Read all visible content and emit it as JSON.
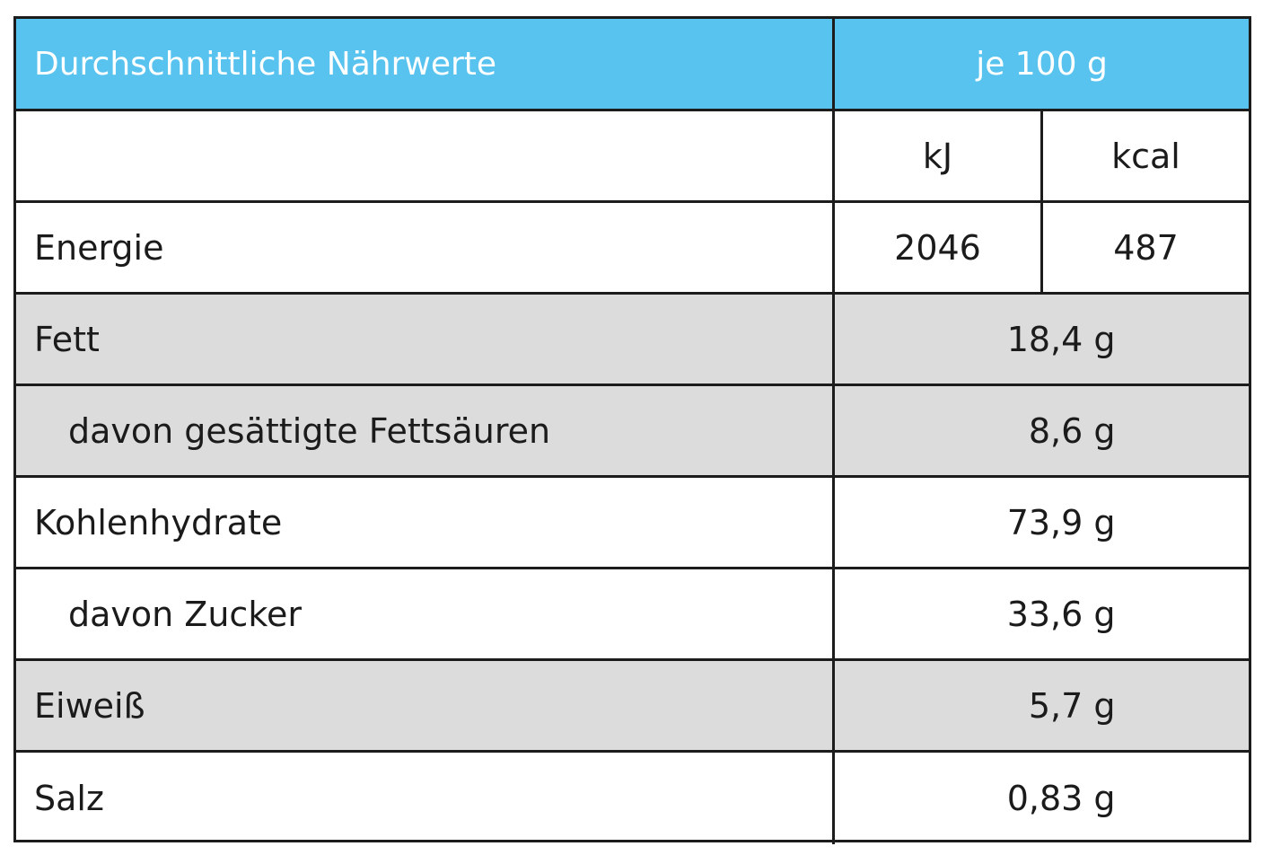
{
  "header": {
    "title": "Durchschnittliche Nährwerte",
    "per": "je 100 g"
  },
  "units": {
    "kj": "kJ",
    "kcal": "kcal"
  },
  "energy": {
    "label": "Energie",
    "kj": "2046",
    "kcal": "487"
  },
  "rows": [
    {
      "label": "Fett",
      "value": "18,4 g",
      "shaded": true,
      "indent": false
    },
    {
      "label": "davon gesättigte Fettsäuren",
      "value": "8,6 g",
      "shaded": true,
      "indent": true
    },
    {
      "label": "Kohlenhydrate",
      "value": "73,9 g",
      "shaded": false,
      "indent": false
    },
    {
      "label": "davon Zucker",
      "value": "33,6 g",
      "shaded": false,
      "indent": true
    },
    {
      "label": "Eiweiß",
      "value": "5,7 g",
      "shaded": true,
      "indent": false
    },
    {
      "label": "Salz",
      "value": "0,83 g",
      "shaded": false,
      "indent": false
    }
  ],
  "colors": {
    "header_bg": "#59c3f0",
    "shaded_bg": "#dcdcdc",
    "border": "#1c1c1c"
  }
}
